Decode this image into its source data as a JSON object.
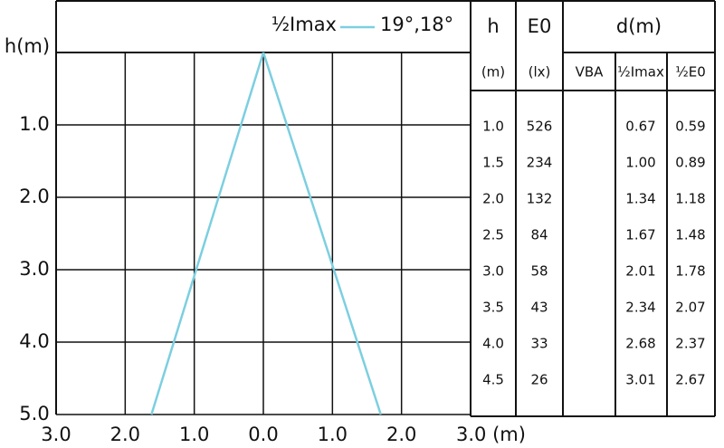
{
  "chart_data": {
    "type": "line",
    "ylabel": "h(m)",
    "legend": {
      "label": "½Imax",
      "angles": "19°,18°"
    },
    "xlim": [
      -3,
      3
    ],
    "ylim": [
      0,
      5
    ],
    "xticks": [
      {
        "value": -3,
        "label": "3.0"
      },
      {
        "value": -2,
        "label": "2.0"
      },
      {
        "value": -1,
        "label": "1.0"
      },
      {
        "value": 0,
        "label": "0.0"
      },
      {
        "value": 1,
        "label": "1.0"
      },
      {
        "value": 2,
        "label": "2.0"
      },
      {
        "value": 3,
        "label": "3.0 (m)"
      }
    ],
    "yticks": [
      {
        "value": 1,
        "label": "1.0"
      },
      {
        "value": 2,
        "label": "2.0"
      },
      {
        "value": 3,
        "label": "3.0"
      },
      {
        "value": 4,
        "label": "4.0"
      },
      {
        "value": 5,
        "label": "5.0"
      }
    ],
    "grid": true,
    "series": [
      {
        "color": "#7ccfe0",
        "x": [
          0,
          -1.62
        ],
        "y": [
          0,
          5
        ]
      },
      {
        "color": "#7ccfe0",
        "x": [
          0,
          1.7
        ],
        "y": [
          0,
          5
        ]
      }
    ]
  },
  "table": {
    "headers": [
      "h",
      "E0",
      "d(m)"
    ],
    "subheaders": [
      "(m)",
      "(lx)",
      "VBA",
      "½Imax",
      "½E0"
    ],
    "rows": [
      [
        "1.0",
        "526",
        "0.67",
        "0.59"
      ],
      [
        "1.5",
        "234",
        "1.00",
        "0.89"
      ],
      [
        "2.0",
        "132",
        "1.34",
        "1.18"
      ],
      [
        "2.5",
        "84",
        "1.67",
        "1.48"
      ],
      [
        "3.0",
        "58",
        "2.01",
        "1.78"
      ],
      [
        "3.5",
        "43",
        "2.34",
        "2.07"
      ],
      [
        "4.0",
        "33",
        "2.68",
        "2.37"
      ],
      [
        "4.5",
        "26",
        "3.01",
        "2.67"
      ]
    ]
  }
}
